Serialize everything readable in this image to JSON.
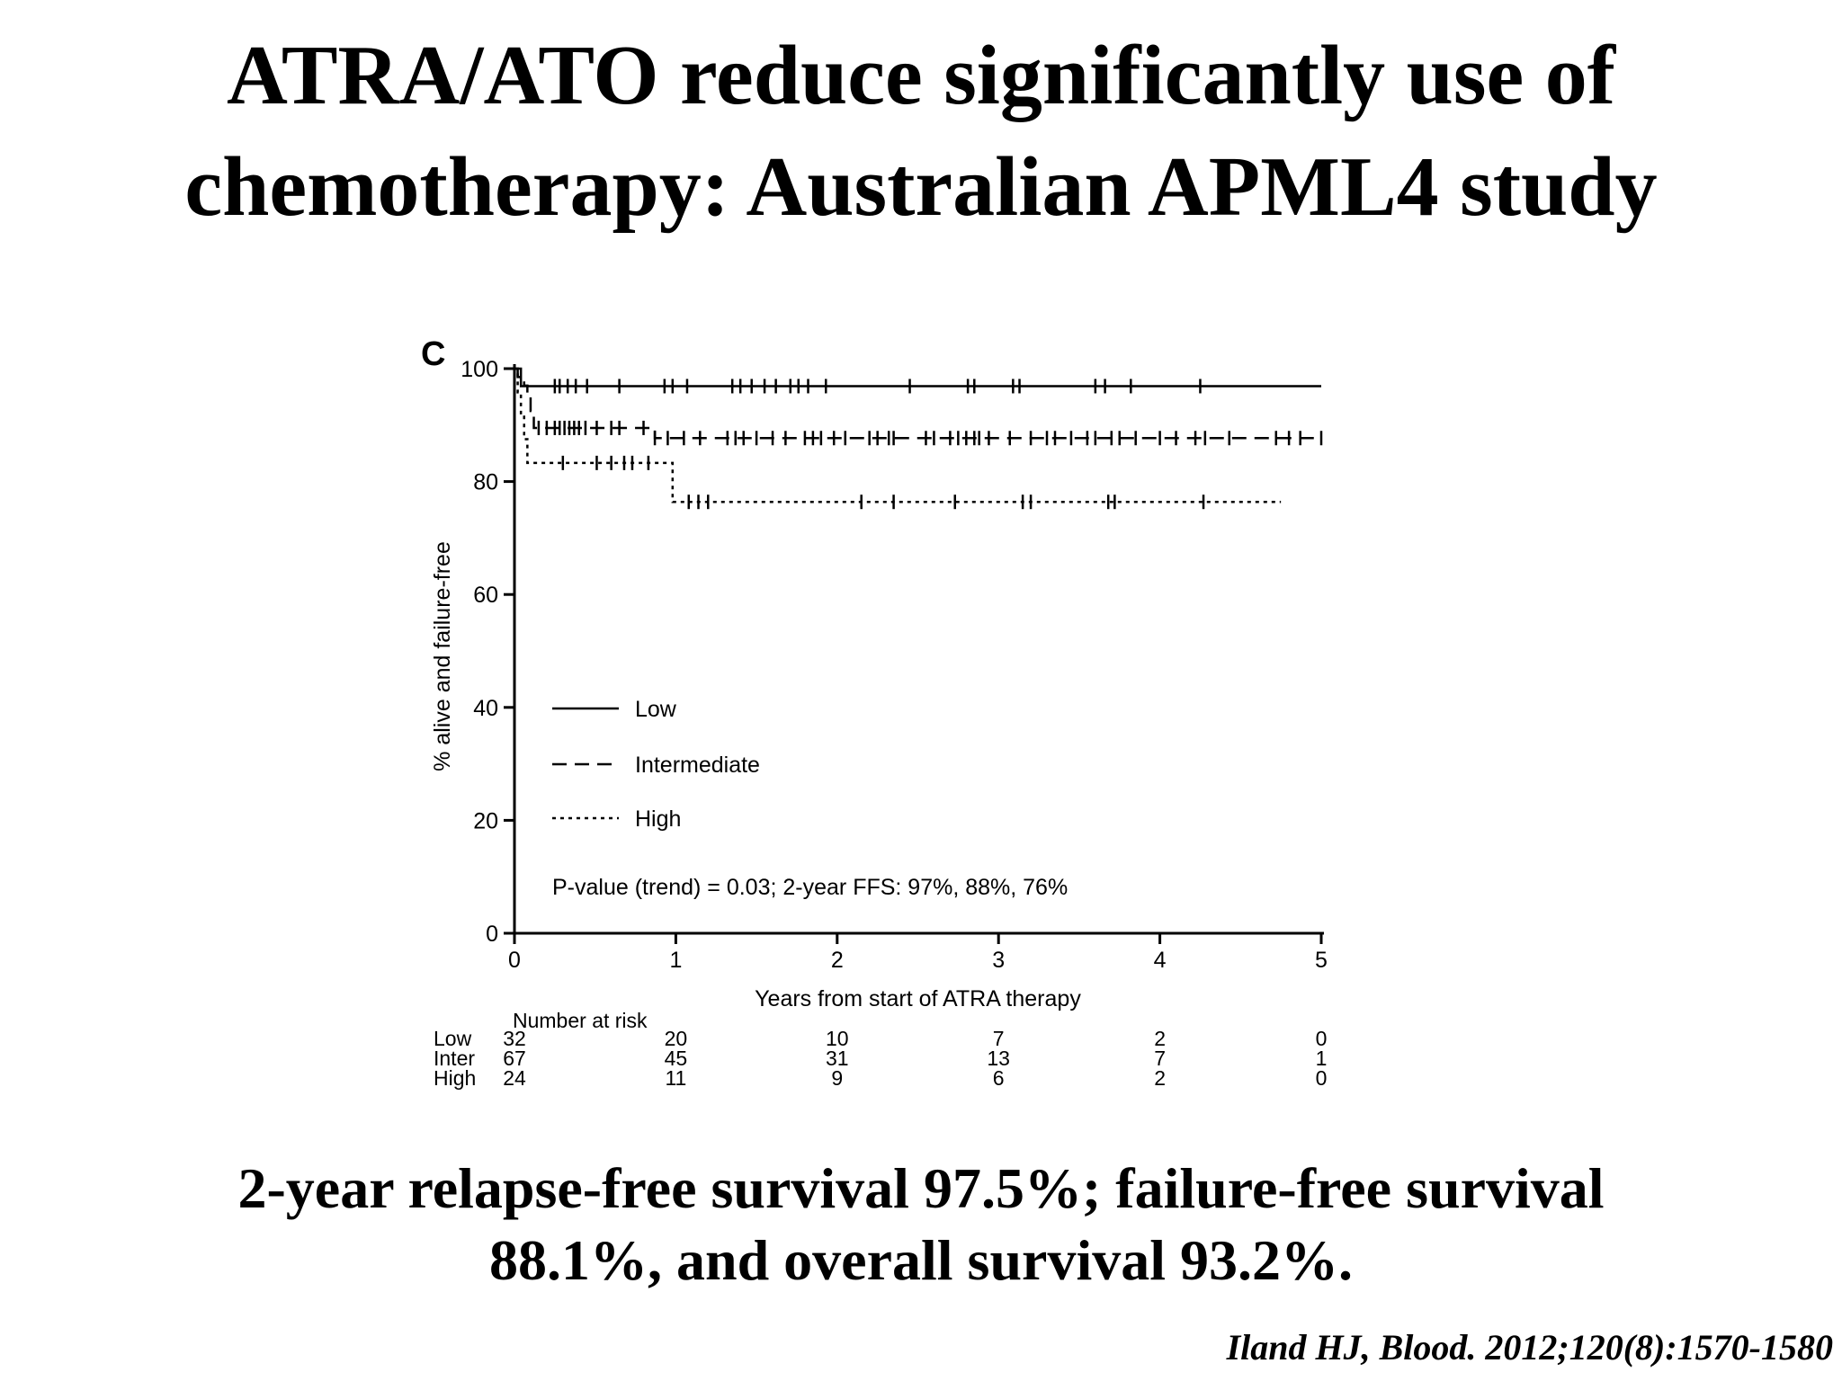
{
  "slide": {
    "title_line1": "ATRA/ATO reduce significantly use of",
    "title_line2": "chemotherapy: Australian APML4 study",
    "footer_line1": "2-year relapse-free survival 97.5%; failure-free survival",
    "footer_line2": "88.1%, and overall survival 93.2%.",
    "citation": "Iland HJ, Blood. 2012;120(8):1570-1580"
  },
  "chart_data": {
    "type": "line",
    "panel_label": "C",
    "xlabel": "Years from start of ATRA therapy",
    "ylabel": "% alive and failure-free",
    "xlim": [
      0,
      5
    ],
    "ylim": [
      0,
      100
    ],
    "xticks": [
      0,
      1,
      2,
      3,
      4,
      5
    ],
    "yticks": [
      0,
      20,
      40,
      60,
      80,
      100
    ],
    "grid": false,
    "legend_position": "lower-left",
    "annotation": "P-value (trend) = 0.03; 2-year FFS: 97%, 88%, 76%",
    "series": [
      {
        "name": "Low",
        "line_style": "solid",
        "steps": [
          [
            0,
            100
          ],
          [
            0.04,
            96.9
          ],
          [
            5.0,
            96.9
          ]
        ],
        "censored_x": [
          0.25,
          0.28,
          0.33,
          0.38,
          0.45,
          0.65,
          0.93,
          0.98,
          1.07,
          1.35,
          1.4,
          1.47,
          1.55,
          1.62,
          1.71,
          1.76,
          1.82,
          1.93,
          2.45,
          2.81,
          2.85,
          3.09,
          3.13,
          3.6,
          3.66,
          3.82,
          4.25
        ]
      },
      {
        "name": "Intermediate",
        "line_style": "dashed",
        "steps": [
          [
            0,
            100
          ],
          [
            0.02,
            98.5
          ],
          [
            0.06,
            97.0
          ],
          [
            0.08,
            95.5
          ],
          [
            0.1,
            92.5
          ],
          [
            0.12,
            89.5
          ],
          [
            0.87,
            87.7
          ],
          [
            5.0,
            87.7
          ]
        ],
        "censored_x": [
          0.15,
          0.2,
          0.25,
          0.28,
          0.31,
          0.34,
          0.37,
          0.4,
          0.44,
          0.51,
          0.6,
          0.65,
          0.8,
          0.87,
          0.95,
          1.05,
          1.15,
          1.32,
          1.37,
          1.42,
          1.5,
          1.6,
          1.68,
          1.8,
          1.85,
          1.9,
          1.98,
          2.05,
          2.2,
          2.25,
          2.32,
          2.35,
          2.55,
          2.6,
          2.7,
          2.75,
          2.8,
          2.85,
          2.88,
          2.94,
          3.07,
          3.2,
          3.3,
          3.35,
          3.45,
          3.55,
          3.6,
          3.7,
          3.75,
          3.85,
          4.0,
          4.1,
          4.22,
          4.28,
          4.43,
          4.72,
          4.8,
          4.87,
          5.0
        ]
      },
      {
        "name": "High",
        "line_style": "dotted",
        "steps": [
          [
            0,
            100
          ],
          [
            0.02,
            95.8
          ],
          [
            0.04,
            91.7
          ],
          [
            0.06,
            87.5
          ],
          [
            0.08,
            83.3
          ],
          [
            0.98,
            76.4
          ],
          [
            4.75,
            76.4
          ]
        ],
        "censored_x": [
          0.3,
          0.51,
          0.6,
          0.68,
          0.73,
          0.83,
          1.08,
          1.14,
          1.2,
          2.15,
          2.35,
          2.73,
          3.15,
          3.2,
          3.68,
          3.72,
          4.27
        ]
      }
    ],
    "risk_table": {
      "title": "Number at risk",
      "time_points": [
        0,
        1,
        2,
        3,
        4,
        5
      ],
      "rows": [
        {
          "label": "Low",
          "counts": [
            32,
            20,
            10,
            7,
            2,
            0
          ]
        },
        {
          "label": "Inter",
          "counts": [
            67,
            45,
            31,
            13,
            7,
            1
          ]
        },
        {
          "label": "High",
          "counts": [
            24,
            11,
            9,
            6,
            2,
            0
          ]
        }
      ]
    }
  }
}
